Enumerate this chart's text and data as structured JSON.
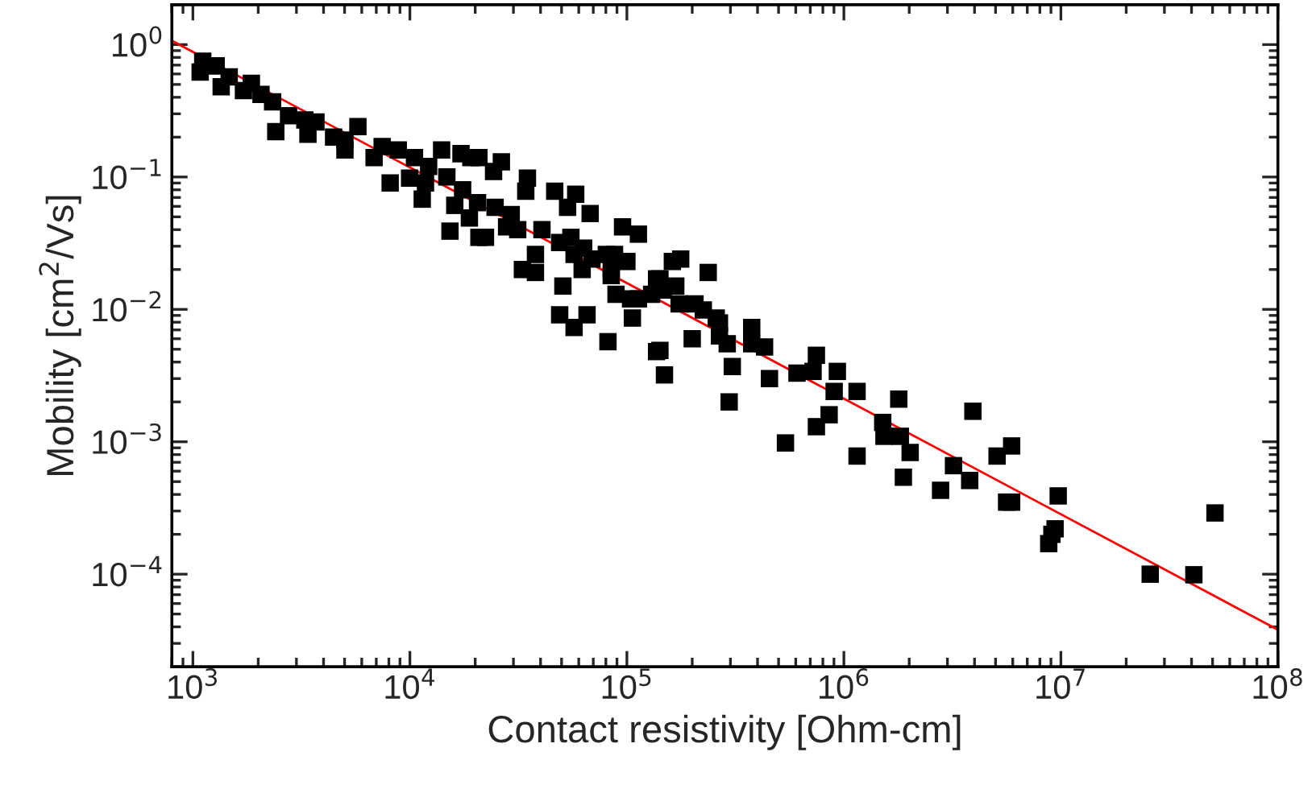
{
  "chart_data": {
    "type": "scatter",
    "xlabel": "Contact resistivity [Ohm-cm]",
    "ylabel": "Mobility [cm$^{2}$/Vs]",
    "log": "xy",
    "grid": false,
    "legend": false,
    "xlim": [
      800,
      100000000
    ],
    "ylim": [
      2e-05,
      2
    ],
    "xticks": [
      {
        "value": 1000,
        "label": "10$^{3}$"
      },
      {
        "value": 10000,
        "label": "10$^{4}$"
      },
      {
        "value": 100000,
        "label": "10$^{5}$"
      },
      {
        "value": 1000000,
        "label": "10$^{6}$"
      },
      {
        "value": 10000000,
        "label": "10$^{7}$"
      },
      {
        "value": 100000000,
        "label": "10$^{8}$"
      }
    ],
    "yticks": [
      {
        "value": 0.0001,
        "label": "10$^{−4}$"
      },
      {
        "value": 0.001,
        "label": "10$^{−3}$"
      },
      {
        "value": 0.01,
        "label": "10$^{−2}$"
      },
      {
        "value": 0.1,
        "label": "10$^{−1}$"
      },
      {
        "value": 1,
        "label": "10$^{0}$"
      }
    ],
    "series": [
      {
        "color": "#000000",
        "marker": "square",
        "x": [
          1080,
          1110,
          1280,
          1350,
          1470,
          1710,
          1860,
          2060,
          2330,
          2410,
          2760,
          3280,
          3390,
          3690,
          4450,
          5020,
          5020,
          5760,
          6840,
          7450,
          8110,
          8840,
          9970,
          10500,
          11400,
          11800,
          12200,
          14000,
          14800,
          15300,
          16100,
          17200,
          17500,
          18800,
          19100,
          20800,
          20500,
          20800,
          22300,
          24300,
          24700,
          26400,
          27900,
          29300,
          31400,
          34200,
          34800,
          33000,
          37900,
          37900,
          40600,
          46500,
          49000,
          50700,
          49000,
          53300,
          55200,
          57100,
          57100,
          58100,
          62200,
          65500,
          63200,
          67700,
          69000,
          80400,
          81800,
          84700,
          95500,
          100000,
          104000,
          106000,
          113000,
          113000,
          137000,
          149000,
          137000,
          162000,
          87700,
          84700,
          89100,
          130000,
          142000,
          147000,
          168000,
          174000,
          177000,
          206000,
          225000,
          200000,
          237000,
          258000,
          267000,
          267000,
          290000,
          306000,
          376000,
          376000,
          431000,
          142000,
          454000,
          608000,
          721000,
          747000,
          933000,
          902000,
          1150000,
          1790000,
          296000,
          855000,
          747000,
          538000,
          1510000,
          1530000,
          1820000,
          1150000,
          2020000,
          1880000,
          2790000,
          3200000,
          3800000,
          3930000,
          5080000,
          5930000,
          5620000,
          5930000,
          8790000,
          9090000,
          9400000,
          9720000,
          25800000,
          41000000,
          51300000
        ],
        "values": [
          0.62,
          0.75,
          0.69,
          0.48,
          0.57,
          0.45,
          0.51,
          0.42,
          0.37,
          0.22,
          0.29,
          0.27,
          0.21,
          0.26,
          0.2,
          0.16,
          0.19,
          0.24,
          0.14,
          0.17,
          0.09,
          0.16,
          0.098,
          0.14,
          0.068,
          0.09,
          0.12,
          0.16,
          0.1,
          0.039,
          0.061,
          0.15,
          0.08,
          0.049,
          0.14,
          0.14,
          0.064,
          0.035,
          0.035,
          0.11,
          0.059,
          0.13,
          0.042,
          0.052,
          0.04,
          0.078,
          0.098,
          0.02,
          0.019,
          0.026,
          0.04,
          0.078,
          0.032,
          0.015,
          0.0091,
          0.059,
          0.035,
          0.0073,
          0.026,
          0.074,
          0.02,
          0.0091,
          0.029,
          0.053,
          0.024,
          0.026,
          0.0057,
          0.02,
          0.042,
          0.023,
          0.012,
          0.0086,
          0.037,
          0.012,
          0.0048,
          0.0032,
          0.017,
          0.023,
          0.026,
          0.018,
          0.013,
          0.013,
          0.017,
          0.014,
          0.015,
          0.011,
          0.024,
          0.011,
          0.0099,
          0.006,
          0.019,
          0.0086,
          0.0079,
          0.0063,
          0.0055,
          0.0037,
          0.0073,
          0.0055,
          0.0052,
          0.0049,
          0.003,
          0.0033,
          0.0034,
          0.0045,
          0.0034,
          0.0024,
          0.0024,
          0.0021,
          0.002,
          0.0016,
          0.0013,
          0.00098,
          0.0014,
          0.0011,
          0.0011,
          0.00078,
          0.00083,
          0.00054,
          0.00043,
          0.00066,
          0.00051,
          0.0017,
          0.00078,
          0.00093,
          0.00035,
          0.00035,
          0.00017,
          0.0002,
          0.00022,
          0.00039,
          0.0001,
          9.9e-05,
          0.00029
        ]
      },
      {
        "type": "line",
        "color": "#ff0000",
        "line_style": "solid",
        "x": [
          800,
          100000000
        ],
        "values": [
          1.07,
          3.8e-05
        ]
      }
    ]
  }
}
